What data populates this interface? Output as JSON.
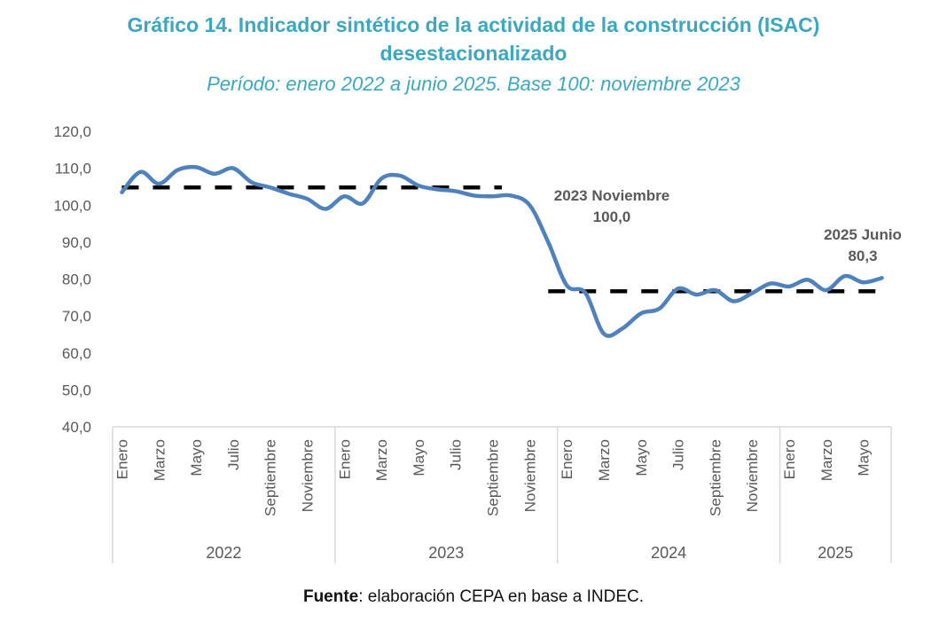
{
  "header": {
    "title_line1": "Gráfico 14. Indicador sintético de la actividad de la construcción (ISAC)",
    "title_line2": "desestacionalizado",
    "subtitle": "Período: enero 2022 a junio 2025. Base 100: noviembre 2023"
  },
  "footer": {
    "source_label": "Fuente",
    "source_text": ": elaboración CEPA en base a INDEC."
  },
  "colors": {
    "title": "#3aa8c1",
    "series": "#4f81bd",
    "reference": "#000000",
    "axis_text": "#595959"
  },
  "chart_data": {
    "type": "line",
    "title": "Gráfico 14. Indicador sintético de la actividad de la construcción (ISAC) desestacionalizado",
    "subtitle": "Período: enero 2022 a junio 2025. Base 100: noviembre 2023",
    "xlabel": "",
    "ylabel": "",
    "ylim": [
      40,
      120
    ],
    "yticks": [
      "40,0",
      "50,0",
      "60,0",
      "70,0",
      "80,0",
      "90,0",
      "100,0",
      "110,0",
      "120,0"
    ],
    "grid": false,
    "legend": "none",
    "years": [
      {
        "label": "2022",
        "months": 12
      },
      {
        "label": "2023",
        "months": 12
      },
      {
        "label": "2024",
        "months": 12
      },
      {
        "label": "2025",
        "months": 6
      }
    ],
    "tick_labels": [
      "Enero",
      "",
      "Marzo",
      "",
      "Mayo",
      "",
      "Julio",
      "",
      "Septiembre",
      "",
      "Noviembre",
      "",
      "Enero",
      "",
      "Marzo",
      "",
      "Mayo",
      "",
      "Julio",
      "",
      "Septiembre",
      "",
      "Noviembre",
      "",
      "Enero",
      "",
      "Marzo",
      "",
      "Mayo",
      "",
      "Julio",
      "",
      "Septiembre",
      "",
      "Noviembre",
      "",
      "Enero",
      "",
      "Marzo",
      "",
      "Mayo",
      ""
    ],
    "series": [
      {
        "name": "ISAC desestacionalizado",
        "values": [
          103.5,
          109.0,
          105.8,
          109.5,
          110.3,
          108.5,
          110.0,
          106.2,
          104.8,
          103.1,
          101.7,
          99.0,
          102.4,
          100.5,
          107.2,
          108.0,
          105.3,
          104.3,
          103.8,
          102.6,
          102.4,
          102.6,
          100.0,
          90.0,
          78.3,
          76.3,
          65.2,
          66.6,
          70.7,
          72.0,
          77.4,
          75.8,
          77.0,
          74.0,
          76.2,
          78.8,
          78.0,
          79.8,
          77.0,
          80.8,
          79.1,
          80.3
        ]
      }
    ],
    "reference_lines": [
      {
        "name": "promedio-2022-2023",
        "value": 104.8,
        "from_index": 0,
        "to_index": 20.5
      },
      {
        "name": "promedio-2024-2025",
        "value": 76.7,
        "from_index": 23,
        "to_index": 41
      }
    ],
    "annotations": [
      {
        "index": 22,
        "line1": "2023 Noviembre",
        "line2": "100,0"
      },
      {
        "index": 41,
        "line1": "2025 Junio",
        "line2": "80,3"
      }
    ]
  }
}
